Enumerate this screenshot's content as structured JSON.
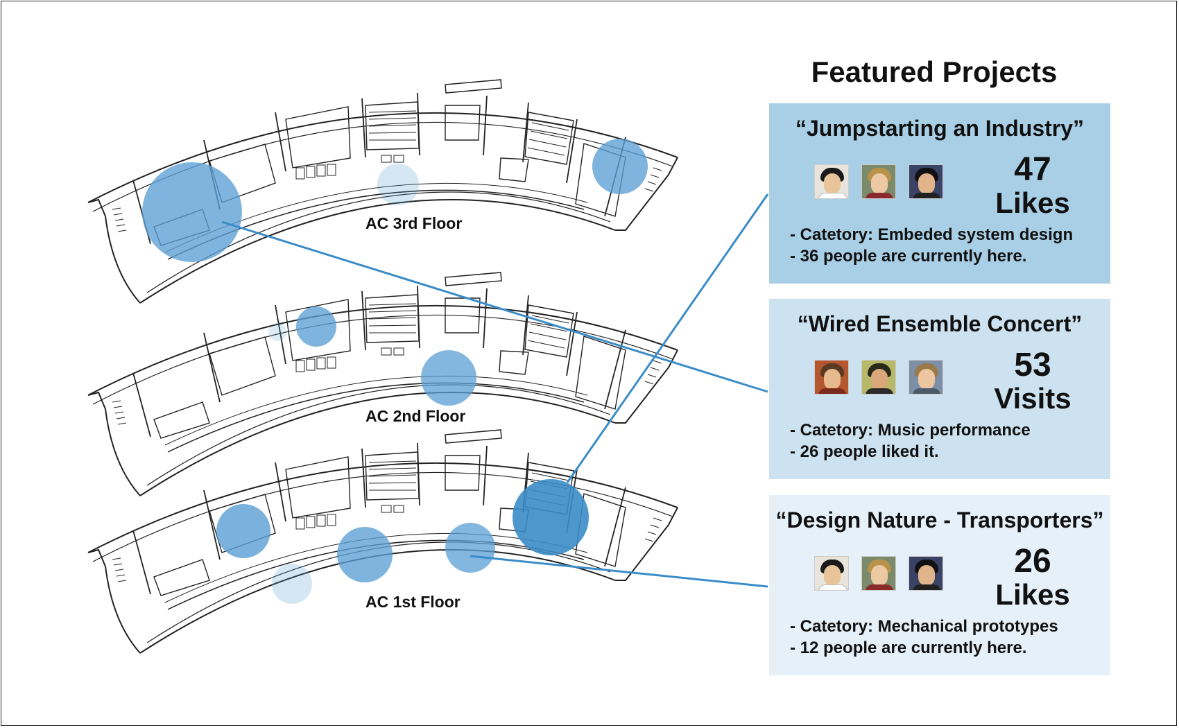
{
  "panel": {
    "title": "Featured Projects"
  },
  "floors": [
    {
      "id": "3rd",
      "label": "AC 3rd Floor"
    },
    {
      "id": "2nd",
      "label": "AC 2nd Floor"
    },
    {
      "id": "1st",
      "label": "AC 1st Floor"
    }
  ],
  "projects": [
    {
      "title": "“Jumpstarting an Industry”",
      "count": "47",
      "unit": "Likes",
      "category": "- Catetory: Embeded system design",
      "note": "- 36 people are currently here.",
      "color": "#a9cfe6"
    },
    {
      "title": "“Wired Ensemble Concert”",
      "count": "53",
      "unit": "Visits",
      "category": "- Catetory: Music performance",
      "note": "- 26 people liked it.",
      "color": "#cde2f1"
    },
    {
      "title": "“Design Nature - Transporters”",
      "count": "26",
      "unit": "Likes",
      "category": "- Catetory: Mechanical prototypes",
      "note": "- 12 people are currently here.",
      "color": "#e6f0f8"
    }
  ],
  "colors": {
    "hotspot": "#5a9fd4",
    "connector": "#3a8cc8",
    "floorplan_line": "#222222"
  }
}
